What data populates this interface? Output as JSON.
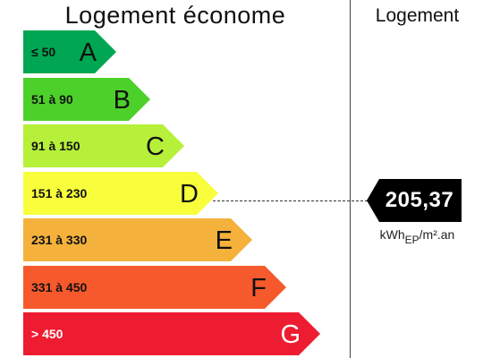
{
  "header": {
    "left_title": "Logement économe",
    "right_title": "Logement"
  },
  "classes": [
    {
      "range": "≤ 50",
      "letter": "A",
      "color": "#00a651"
    },
    {
      "range": "51 à 90",
      "letter": "B",
      "color": "#4cd02a"
    },
    {
      "range": "91 à 150",
      "letter": "C",
      "color": "#b6f03a"
    },
    {
      "range": "151 à 230",
      "letter": "D",
      "color": "#f8fe3c"
    },
    {
      "range": "231 à 330",
      "letter": "E",
      "color": "#f4b13c"
    },
    {
      "range": "331 à 450",
      "letter": "F",
      "color": "#f65a2c"
    },
    {
      "range": "> 450",
      "letter": "G",
      "color": "#ee1c30"
    }
  ],
  "indicator": {
    "value": "205,37",
    "class_letter": "D",
    "color": "#000000",
    "unit_main": "kWh",
    "unit_sub": "EP",
    "unit_rest": "/m².an"
  }
}
